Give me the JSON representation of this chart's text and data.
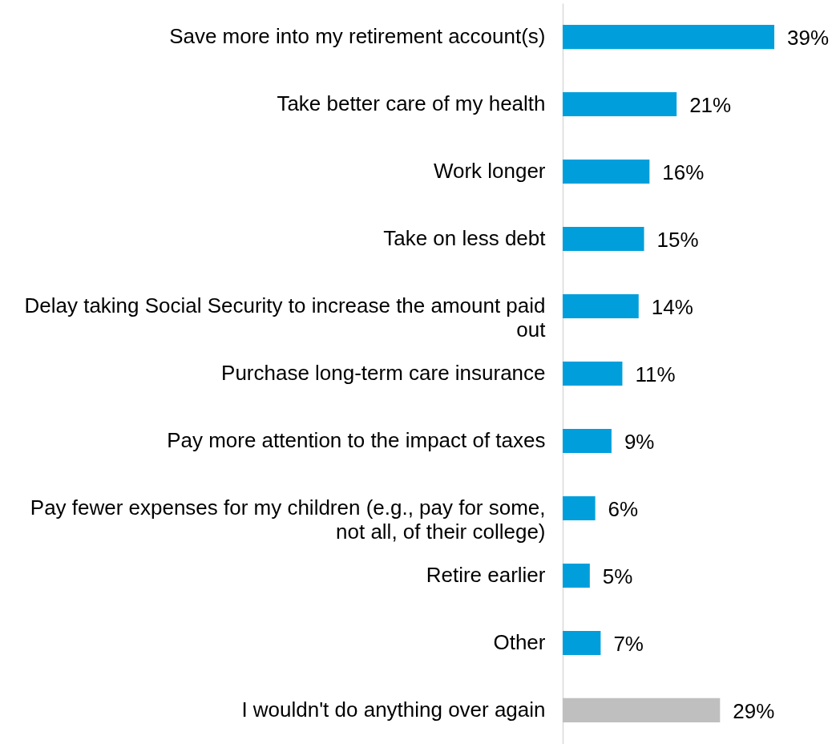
{
  "chart_data": {
    "type": "bar",
    "orientation": "horizontal",
    "categories": [
      "Save more into my retirement account(s)",
      "Take better care of my health",
      "Work longer",
      "Take on less debt",
      "Delay taking Social Security to increase the amount paid out",
      "Purchase long-term care insurance",
      "Pay more attention to the impact of taxes",
      "Pay fewer expenses for my children (e.g., pay for some, not all, of their college)",
      "Retire earlier",
      "Other",
      "I wouldn't do anything over again"
    ],
    "values": [
      39,
      21,
      16,
      15,
      14,
      11,
      9,
      6,
      5,
      7,
      29
    ],
    "colors": [
      "#009fdb",
      "#009fdb",
      "#009fdb",
      "#009fdb",
      "#009fdb",
      "#009fdb",
      "#009fdb",
      "#009fdb",
      "#009fdb",
      "#009fdb",
      "#bfbfbf"
    ],
    "value_labels": [
      "39%",
      "21%",
      "16%",
      "15%",
      "14%",
      "11%",
      "9%",
      "6%",
      "5%",
      "7%",
      "29%"
    ],
    "grid": false
  }
}
